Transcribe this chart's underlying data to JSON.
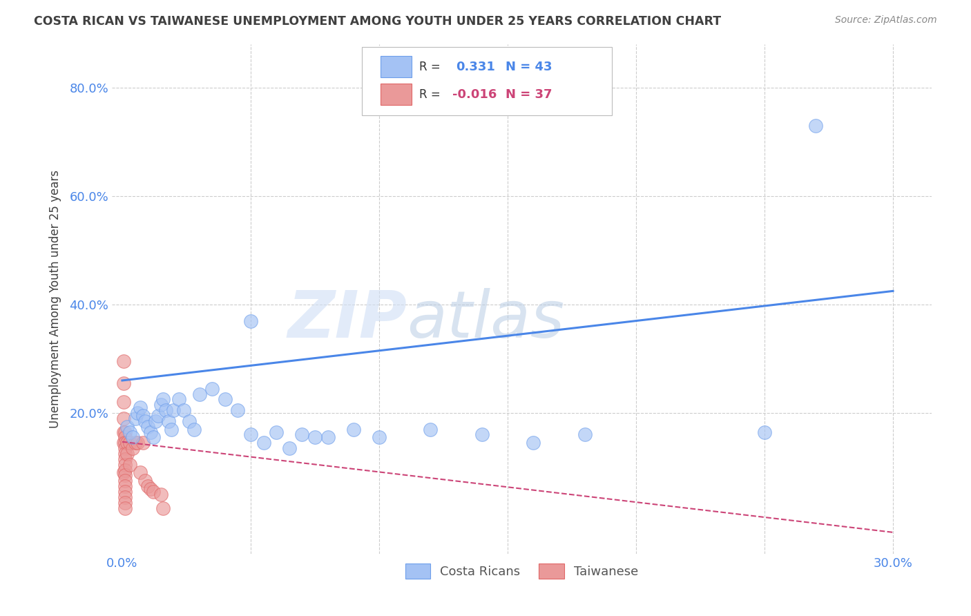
{
  "title": "COSTA RICAN VS TAIWANESE UNEMPLOYMENT AMONG YOUTH UNDER 25 YEARS CORRELATION CHART",
  "source": "Source: ZipAtlas.com",
  "xlabel_ticks_show": [
    0.0,
    0.3
  ],
  "xlabel_ticks_grid": [
    0.05,
    0.1,
    0.15,
    0.2,
    0.25,
    0.3
  ],
  "ylabel_ticks": [
    0.2,
    0.4,
    0.6,
    0.8
  ],
  "xlim": [
    -0.004,
    0.315
  ],
  "ylim": [
    -0.06,
    0.88
  ],
  "watermark_zip": "ZIP",
  "watermark_atlas": "atlas",
  "legend_labels": [
    "Costa Ricans",
    "Taiwanese"
  ],
  "blue_R": "0.331",
  "blue_N": "43",
  "pink_R": "-0.016",
  "pink_N": "37",
  "blue_color": "#a4c2f4",
  "pink_color": "#ea9999",
  "blue_edge": "#6d9eeb",
  "pink_edge": "#e06666",
  "line_blue": "#4a86e8",
  "line_pink": "#cc4477",
  "bg_color": "#ffffff",
  "grid_color": "#cccccc",
  "title_color": "#404040",
  "ylabel_label_color": "#404040",
  "tick_color": "#4a86e8",
  "blue_scatter_x": [
    0.002,
    0.003,
    0.004,
    0.005,
    0.006,
    0.007,
    0.008,
    0.009,
    0.01,
    0.011,
    0.012,
    0.013,
    0.014,
    0.015,
    0.016,
    0.017,
    0.018,
    0.019,
    0.02,
    0.022,
    0.024,
    0.026,
    0.028,
    0.03,
    0.035,
    0.04,
    0.045,
    0.05,
    0.055,
    0.06,
    0.07,
    0.08,
    0.09,
    0.1,
    0.12,
    0.14,
    0.16,
    0.18,
    0.05,
    0.065,
    0.075,
    0.25,
    0.27
  ],
  "blue_scatter_y": [
    0.175,
    0.165,
    0.155,
    0.19,
    0.2,
    0.21,
    0.195,
    0.185,
    0.175,
    0.165,
    0.155,
    0.185,
    0.195,
    0.215,
    0.225,
    0.205,
    0.185,
    0.17,
    0.205,
    0.225,
    0.205,
    0.185,
    0.17,
    0.235,
    0.245,
    0.225,
    0.205,
    0.16,
    0.145,
    0.165,
    0.16,
    0.155,
    0.17,
    0.155,
    0.17,
    0.16,
    0.145,
    0.16,
    0.37,
    0.135,
    0.155,
    0.165,
    0.73
  ],
  "pink_scatter_x": [
    0.0005,
    0.0005,
    0.0005,
    0.0005,
    0.0005,
    0.0005,
    0.0005,
    0.001,
    0.001,
    0.001,
    0.001,
    0.001,
    0.001,
    0.001,
    0.001,
    0.001,
    0.001,
    0.001,
    0.001,
    0.001,
    0.001,
    0.001,
    0.002,
    0.002,
    0.003,
    0.003,
    0.004,
    0.005,
    0.006,
    0.007,
    0.008,
    0.009,
    0.01,
    0.011,
    0.012,
    0.015,
    0.016
  ],
  "pink_scatter_y": [
    0.295,
    0.255,
    0.22,
    0.19,
    0.165,
    0.145,
    0.09,
    0.165,
    0.155,
    0.145,
    0.135,
    0.125,
    0.115,
    0.105,
    0.095,
    0.085,
    0.075,
    0.065,
    0.055,
    0.045,
    0.035,
    0.025,
    0.145,
    0.125,
    0.145,
    0.105,
    0.135,
    0.145,
    0.145,
    0.09,
    0.145,
    0.075,
    0.065,
    0.06,
    0.055,
    0.05,
    0.025
  ],
  "blue_line_x": [
    0.0,
    0.3
  ],
  "blue_line_y": [
    0.26,
    0.425
  ],
  "pink_line_x": [
    0.0,
    0.3
  ],
  "pink_line_y": [
    0.147,
    -0.02
  ]
}
